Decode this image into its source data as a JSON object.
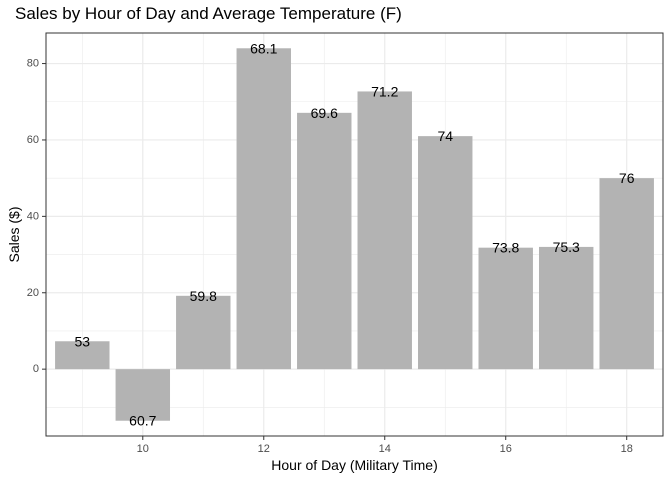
{
  "chart_data": {
    "type": "bar",
    "title": "Sales by Hour of Day and Average Temperature (F)",
    "xlabel": "Hour of Day (Military Time)",
    "ylabel": "Sales ($)",
    "x": [
      9,
      10,
      11,
      12,
      13,
      14,
      15,
      16,
      17,
      18
    ],
    "values": [
      7.3,
      -13.5,
      19.2,
      84.0,
      67.1,
      72.7,
      61.0,
      31.8,
      32.0,
      50.0
    ],
    "labels": [
      "53",
      "60.7",
      "59.8",
      "68.1",
      "69.6",
      "71.2",
      "74",
      "73.8",
      "75.3",
      "76"
    ],
    "xticks": [
      10,
      12,
      14,
      16,
      18
    ],
    "yticks": [
      0,
      20,
      40,
      60,
      80
    ],
    "xlim": [
      8.4,
      18.6
    ],
    "ylim": [
      -17.5,
      88.0
    ],
    "grid": true,
    "bar_color": "#b3b3b3",
    "grid_color": "#ebebeb",
    "panel_border_color": "#333333"
  }
}
